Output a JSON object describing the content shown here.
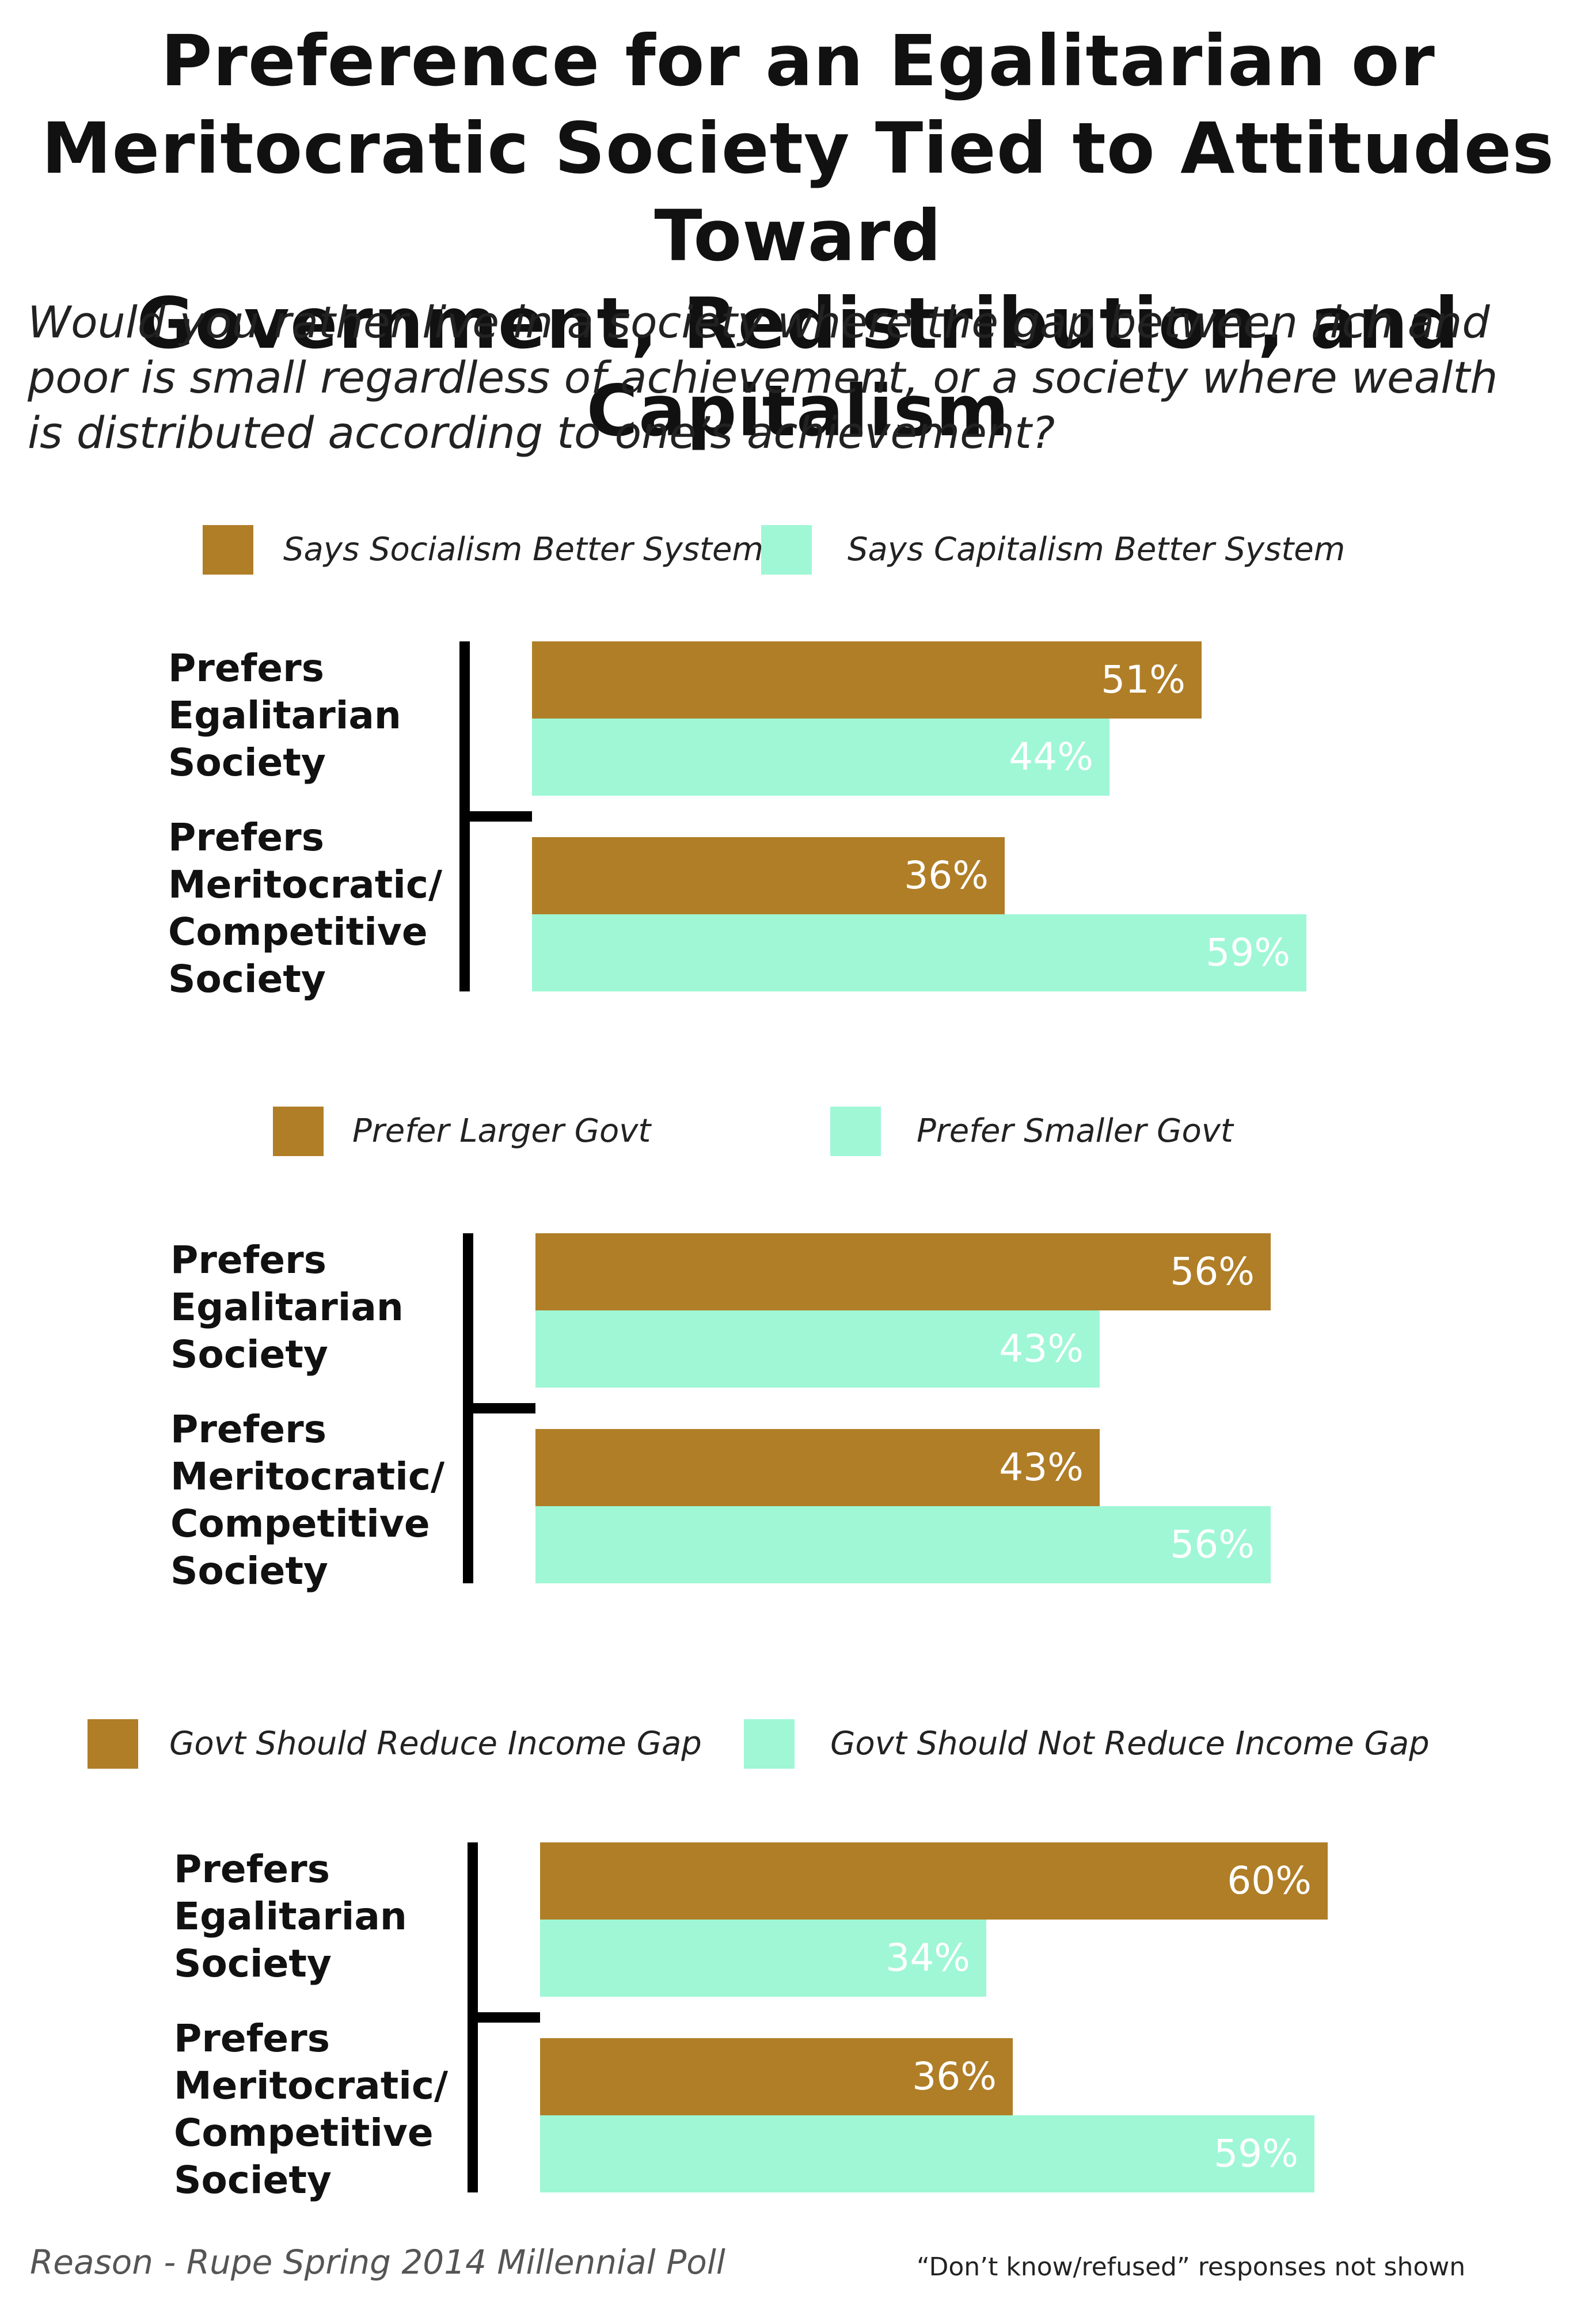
{
  "title_lines": [
    "Preference for an Egalitarian or",
    "Meritocratic Society Tied to Attitudes Toward",
    "Government, Redistribution, and Capitalism"
  ],
  "subtitle_lines": [
    "Would you rather live in a society where the gap between rich and",
    "poor is small regardless of achievement, or a society where wealth",
    "is distributed according to one’s achievement?"
  ],
  "source": "Reason - Rupe Spring 2014 Millennial Poll",
  "footnote": "“Don’t know/refused” responses not shown",
  "colors": {
    "series_a": "#b07e27",
    "series_b": "#9ff7d5",
    "bar_text": "#ffffff"
  },
  "chart_data": [
    {
      "type": "bar",
      "orientation": "horizontal",
      "legend": [
        "Says Socialism Better System",
        "Says Capitalism Better System"
      ],
      "categories": [
        [
          "Prefers",
          "Egalitarian",
          "Society"
        ],
        [
          "Prefers",
          "Meritocratic/",
          "Competitive",
          "Society"
        ]
      ],
      "series": [
        {
          "name": "Says Socialism Better System",
          "values": [
            51,
            36
          ],
          "labels": [
            "51%",
            "36%"
          ]
        },
        {
          "name": "Says Capitalism Better System",
          "values": [
            44,
            59
          ],
          "labels": [
            "44%",
            "59%"
          ]
        }
      ],
      "unit": "%"
    },
    {
      "type": "bar",
      "orientation": "horizontal",
      "legend": [
        "Prefer Larger Govt",
        "Prefer Smaller Govt"
      ],
      "categories": [
        [
          "Prefers",
          "Egalitarian",
          "Society"
        ],
        [
          "Prefers",
          "Meritocratic/",
          "Competitive",
          "Society"
        ]
      ],
      "series": [
        {
          "name": "Prefer Larger Govt",
          "values": [
            56,
            43
          ],
          "labels": [
            "56%",
            "43%"
          ]
        },
        {
          "name": "Prefer Smaller Govt",
          "values": [
            43,
            56
          ],
          "labels": [
            "43%",
            "56%"
          ]
        }
      ],
      "unit": "%"
    },
    {
      "type": "bar",
      "orientation": "horizontal",
      "legend": [
        "Govt Should Reduce Income Gap",
        "Govt Should Not Reduce Income Gap"
      ],
      "categories": [
        [
          "Prefers",
          "Egalitarian",
          "Society"
        ],
        [
          "Prefers",
          "Meritocratic/",
          "Competitive",
          "Society"
        ]
      ],
      "series": [
        {
          "name": "Govt Should Reduce Income Gap",
          "values": [
            60,
            36
          ],
          "labels": [
            "60%",
            "36%"
          ]
        },
        {
          "name": "Govt Should Not Reduce Income Gap",
          "values": [
            34,
            59
          ],
          "labels": [
            "34%",
            "59%"
          ]
        }
      ],
      "unit": "%"
    }
  ]
}
